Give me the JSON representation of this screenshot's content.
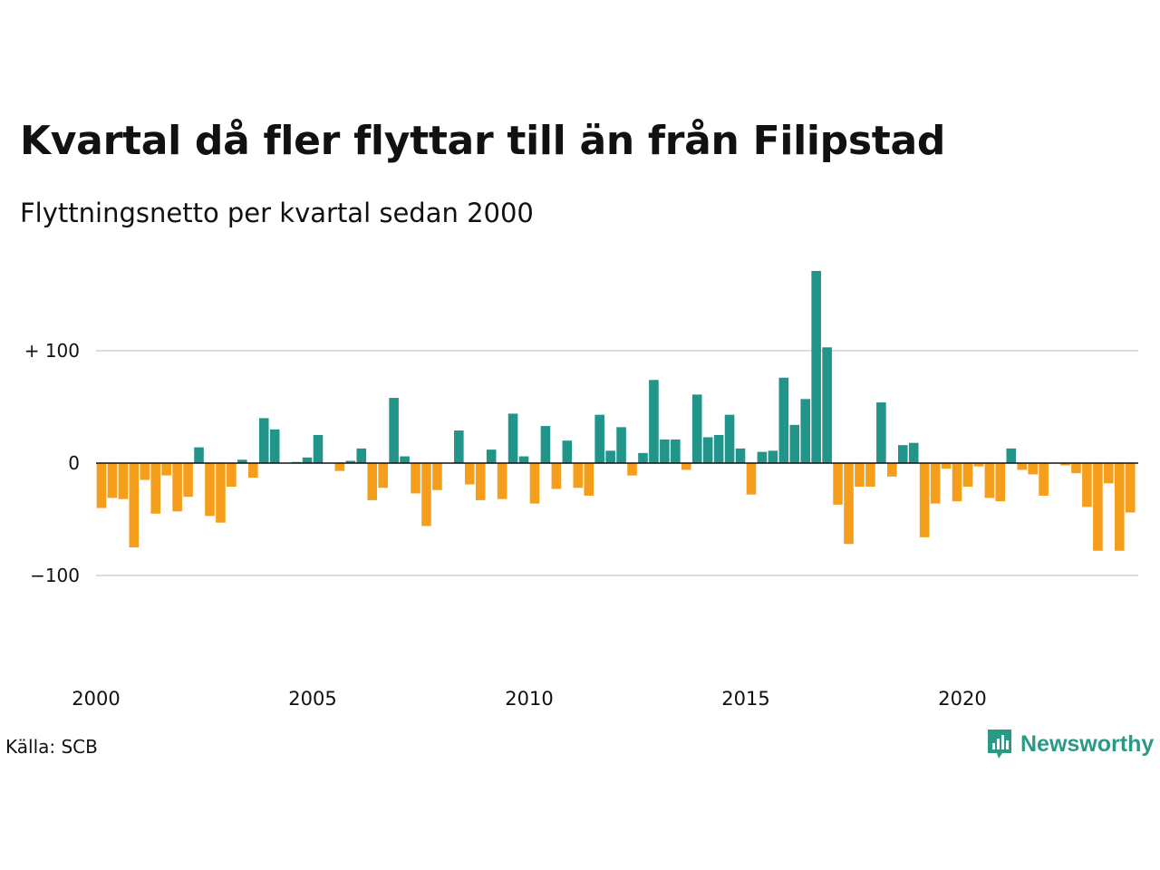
{
  "title": "Kvartal då fler flyttar till än från Filipstad",
  "subtitle": "Flyttningsnetto per kvartal sedan 2000",
  "source": "Källa: SCB",
  "brand": {
    "name": "Newsworthy",
    "icon": "newsworthy-logo-icon"
  },
  "colors": {
    "positive": "#21958a",
    "negative": "#f59e1b",
    "grid": "#dddddd",
    "zero_line": "#111111"
  },
  "chart_data": {
    "type": "bar",
    "xlabel": "",
    "ylabel": "",
    "grid": true,
    "x_start": {
      "year": 2000,
      "quarter": 1
    },
    "x_tick_labels": [
      "2000",
      "2005",
      "2010",
      "2015",
      "2020"
    ],
    "y_tick_values": [
      100,
      0,
      -100
    ],
    "y_tick_labels": [
      "+ 100",
      "0",
      "−100"
    ],
    "ylim": [
      -160,
      175
    ],
    "values": [
      -40,
      -31,
      -32,
      -75,
      -15,
      -45,
      -11,
      -43,
      -30,
      14,
      -47,
      -53,
      -21,
      3,
      -13,
      40,
      30,
      0,
      1,
      5,
      25,
      0,
      -7,
      2,
      13,
      -33,
      -22,
      58,
      6,
      -27,
      -56,
      -24,
      0,
      29,
      -19,
      -33,
      12,
      -32,
      44,
      6,
      -36,
      33,
      -23,
      20,
      -22,
      -29,
      43,
      11,
      32,
      -11,
      9,
      74,
      21,
      21,
      -6,
      61,
      23,
      25,
      43,
      13,
      -28,
      10,
      11,
      76,
      34,
      57,
      171,
      103,
      -37,
      -72,
      -21,
      -21,
      54,
      -12,
      16,
      18,
      -66,
      -36,
      -5,
      -34,
      -21,
      -3,
      -31,
      -34,
      13,
      -6,
      -10,
      -29,
      0,
      -2,
      -9,
      -39,
      -78,
      -18,
      -78,
      -44
    ]
  }
}
